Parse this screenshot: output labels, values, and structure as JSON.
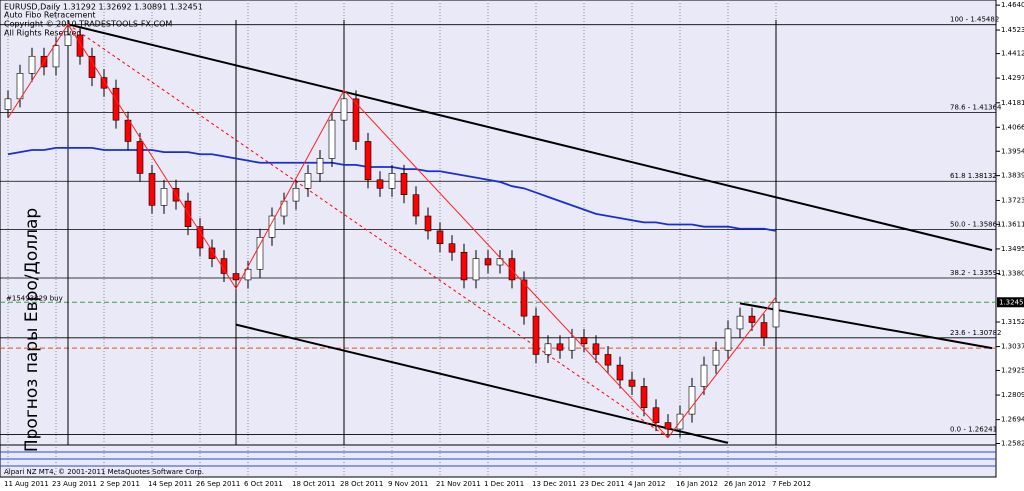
{
  "chart_data": {
    "type": "candlestick",
    "title": "EURUSD,Daily  1.31292 1.32692 1.30891 1.32451",
    "subtitle_lines": [
      "Auto Fibo Retracement",
      "Copyright © 2010 TRADESTOOLS-FX.COM",
      "All Rights Reserved"
    ],
    "side_text": "Прогноз пары Евро/Доллар",
    "footer_text": "Alpari NZ MT4, © 2001-2011 MetaQuotes Software Corp.",
    "order_label": "#15493329 buy",
    "categories": [
      "11 Aug 2011",
      null,
      null,
      null,
      "23 Aug 2011",
      null,
      null,
      null,
      "2 Sep 2011",
      null,
      null,
      null,
      "14 Sep 2011",
      null,
      null,
      null,
      "26 Sep 2011",
      null,
      null,
      null,
      "6 Oct 2011",
      null,
      null,
      null,
      "18 Oct 2011",
      null,
      null,
      null,
      "28 Oct 2011",
      null,
      null,
      null,
      "9 Nov 2011",
      null,
      null,
      null,
      "21 Nov 2011",
      null,
      null,
      null,
      "1 Dec 2011",
      null,
      null,
      null,
      "13 Dec 2011",
      null,
      null,
      null,
      "23 Dec 2011",
      null,
      null,
      null,
      "4 Jan 2012",
      null,
      null,
      null,
      "16 Jan 2012",
      null,
      null,
      null,
      "26 Jan 2012",
      null,
      null,
      null,
      "7 Feb 2012"
    ],
    "open": [
      1.415,
      1.42,
      1.432,
      1.44,
      1.435,
      1.445,
      1.45,
      1.44,
      1.43,
      1.425,
      1.41,
      1.4,
      1.385,
      1.37,
      1.378,
      1.372,
      1.36,
      1.35,
      1.345,
      1.338,
      1.335,
      1.34,
      1.355,
      1.365,
      1.372,
      1.378,
      1.385,
      1.392,
      1.41,
      1.42,
      1.4,
      1.382,
      1.378,
      1.385,
      1.375,
      1.365,
      1.358,
      1.352,
      1.348,
      1.335,
      1.345,
      1.342,
      1.345,
      1.335,
      1.318,
      1.3,
      1.305,
      1.302,
      1.308,
      1.305,
      1.3,
      1.295,
      1.288,
      1.285,
      1.275,
      1.268,
      1.265,
      1.272,
      1.285,
      1.295,
      1.302,
      1.312,
      1.318,
      1.315,
      1.31292
    ],
    "high": [
      1.424,
      1.436,
      1.444,
      1.444,
      1.449,
      1.454,
      1.454,
      1.444,
      1.434,
      1.429,
      1.414,
      1.404,
      1.389,
      1.382,
      1.382,
      1.376,
      1.364,
      1.354,
      1.349,
      1.342,
      1.344,
      1.359,
      1.369,
      1.376,
      1.382,
      1.389,
      1.396,
      1.414,
      1.424,
      1.424,
      1.404,
      1.386,
      1.389,
      1.389,
      1.379,
      1.369,
      1.362,
      1.356,
      1.352,
      1.349,
      1.349,
      1.349,
      1.349,
      1.339,
      1.322,
      1.309,
      1.309,
      1.312,
      1.312,
      1.309,
      1.304,
      1.299,
      1.292,
      1.289,
      1.279,
      1.272,
      1.276,
      1.289,
      1.299,
      1.306,
      1.316,
      1.322,
      1.322,
      1.319,
      1.32692
    ],
    "low": [
      1.411,
      1.416,
      1.428,
      1.431,
      1.431,
      1.441,
      1.436,
      1.426,
      1.421,
      1.406,
      1.396,
      1.381,
      1.366,
      1.366,
      1.368,
      1.356,
      1.346,
      1.341,
      1.334,
      1.331,
      1.331,
      1.336,
      1.351,
      1.361,
      1.368,
      1.374,
      1.381,
      1.388,
      1.406,
      1.396,
      1.378,
      1.374,
      1.374,
      1.371,
      1.361,
      1.354,
      1.348,
      1.344,
      1.331,
      1.331,
      1.338,
      1.338,
      1.331,
      1.314,
      1.296,
      1.296,
      1.298,
      1.298,
      1.301,
      1.296,
      1.291,
      1.284,
      1.281,
      1.271,
      1.264,
      1.261,
      1.261,
      1.268,
      1.281,
      1.291,
      1.298,
      1.308,
      1.311,
      1.304,
      1.30891
    ],
    "close": [
      1.42,
      1.432,
      1.44,
      1.435,
      1.445,
      1.45,
      1.44,
      1.43,
      1.425,
      1.41,
      1.4,
      1.385,
      1.37,
      1.378,
      1.372,
      1.36,
      1.35,
      1.345,
      1.338,
      1.335,
      1.34,
      1.355,
      1.365,
      1.372,
      1.378,
      1.385,
      1.392,
      1.41,
      1.42,
      1.4,
      1.382,
      1.378,
      1.385,
      1.375,
      1.365,
      1.358,
      1.352,
      1.348,
      1.335,
      1.345,
      1.342,
      1.345,
      1.335,
      1.318,
      1.3,
      1.305,
      1.302,
      1.308,
      1.305,
      1.3,
      1.295,
      1.288,
      1.285,
      1.275,
      1.268,
      1.265,
      1.272,
      1.285,
      1.295,
      1.302,
      1.312,
      1.318,
      1.315,
      1.308,
      1.32451
    ],
    "up_color": "#ffffff",
    "down_color": "#ff0000",
    "ma": {
      "color": "#1a2fd0",
      "values": [
        1.394,
        1.395,
        1.396,
        1.396,
        1.397,
        1.397,
        1.397,
        1.397,
        1.396,
        1.396,
        1.396,
        1.396,
        1.396,
        1.395,
        1.395,
        1.395,
        1.394,
        1.394,
        1.393,
        1.392,
        1.391,
        1.39,
        1.39,
        1.39,
        1.39,
        1.39,
        1.39,
        1.39,
        1.389,
        1.389,
        1.388,
        1.388,
        1.388,
        1.387,
        1.387,
        1.386,
        1.386,
        1.385,
        1.384,
        1.383,
        1.382,
        1.381,
        1.379,
        1.378,
        1.376,
        1.374,
        1.372,
        1.37,
        1.368,
        1.366,
        1.365,
        1.364,
        1.363,
        1.362,
        1.362,
        1.361,
        1.361,
        1.361,
        1.36,
        1.36,
        1.36,
        1.359,
        1.359,
        1.359,
        1.358
      ]
    },
    "fibo_levels": [
      {
        "value": 1.45482,
        "label": "100 - 1.45482"
      },
      {
        "value": 1.41364,
        "label": "78.6 - 1.41364"
      },
      {
        "value": 1.38132,
        "label": "61.8  1.38132"
      },
      {
        "value": 1.35861,
        "label": "50.0 - 1.35861"
      },
      {
        "value": 1.33591,
        "label": "38.2 - 1.33591"
      },
      {
        "value": 1.30782,
        "label": "23.6 - 1.30782"
      },
      {
        "value": 1.26241,
        "label": "0.0 - 1.26241"
      }
    ],
    "trend_lines": [
      [
        [
          5,
          1.455
        ],
        [
          82,
          1.349
        ]
      ],
      [
        [
          19,
          1.314
        ],
        [
          60,
          1.2585
        ]
      ],
      [
        [
          61,
          1.324
        ],
        [
          82,
          1.303
        ]
      ]
    ],
    "zigzag": {
      "x": [
        0,
        5,
        19,
        28,
        55,
        64
      ],
      "values": [
        1.411,
        1.455,
        1.331,
        1.424,
        1.261,
        1.327
      ]
    },
    "dashed_line": {
      "x": [
        5,
        55
      ],
      "values": [
        1.455,
        1.261
      ]
    },
    "pivot_x": [
      5,
      19,
      28,
      64
    ],
    "order_level": 1.32451,
    "stop_level": 1.303,
    "ylim": [
      1.2575,
      1.465
    ],
    "yticks": [
      {
        "value": 1.464,
        "label": "1.46400"
      },
      {
        "value": 1.4523,
        "label": "1.45230"
      },
      {
        "value": 1.44125,
        "label": "1.44125"
      },
      {
        "value": 1.42975,
        "label": "1.42975"
      },
      {
        "value": 1.41815,
        "label": "1.41815"
      },
      {
        "value": 1.40665,
        "label": "1.40665"
      },
      {
        "value": 1.3954,
        "label": "1.39540"
      },
      {
        "value": 1.38395,
        "label": "1.38395"
      },
      {
        "value": 1.3723,
        "label": "1.37230"
      },
      {
        "value": 1.3611,
        "label": "1.36110"
      },
      {
        "value": 1.34955,
        "label": "1.34955"
      },
      {
        "value": 1.338,
        "label": "1.33800"
      },
      {
        "value": 1.31525,
        "label": "1.31525"
      },
      {
        "value": 1.3037,
        "label": "1.30370"
      },
      {
        "value": 1.2925,
        "label": "1.29250"
      },
      {
        "value": 1.28095,
        "label": "1.28095"
      },
      {
        "value": 1.2694,
        "label": "1.26940"
      },
      {
        "value": 1.2582,
        "label": "1.25820"
      }
    ],
    "grid": true
  }
}
